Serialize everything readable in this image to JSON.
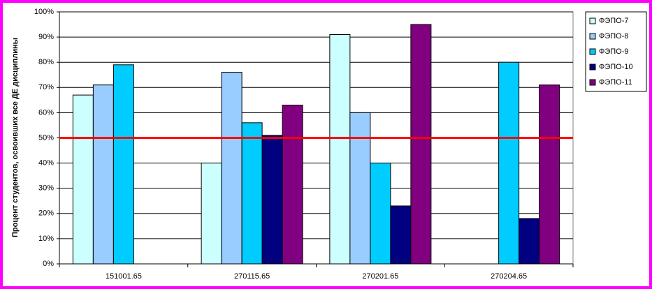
{
  "chart_data": {
    "type": "bar",
    "y_label": "Процент студентов, освоивших все ДЕ дисциплины",
    "categories": [
      "151001.65",
      "270115.65",
      "270201.65",
      "270204.65"
    ],
    "series": [
      {
        "name": "ФЭПО-7",
        "color": "#ccffff",
        "values": [
          67,
          40,
          91,
          null
        ]
      },
      {
        "name": "ФЭПО-8",
        "color": "#99ccff",
        "values": [
          71,
          76,
          60,
          null
        ]
      },
      {
        "name": "ФЭПО-9",
        "color": "#00ccff",
        "values": [
          79,
          56,
          40,
          80
        ]
      },
      {
        "name": "ФЭПО-10",
        "color": "#000080",
        "values": [
          null,
          51,
          23,
          18
        ]
      },
      {
        "name": "ФЭПО-11",
        "color": "#800080",
        "values": [
          null,
          63,
          95,
          71
        ]
      }
    ],
    "ylim": [
      0,
      100
    ],
    "yticks": [
      {
        "value": 0,
        "label": "0%"
      },
      {
        "value": 10,
        "label": "10%"
      },
      {
        "value": 20,
        "label": "20%"
      },
      {
        "value": 30,
        "label": "30%"
      },
      {
        "value": 40,
        "label": "40%"
      },
      {
        "value": 50,
        "label": "50%"
      },
      {
        "value": 60,
        "label": "60%"
      },
      {
        "value": 70,
        "label": "70%"
      },
      {
        "value": 80,
        "label": "80%"
      },
      {
        "value": 90,
        "label": "90%"
      },
      {
        "value": 100,
        "label": "100%"
      }
    ],
    "threshold": 50,
    "threshold_color": "#ff0000",
    "grid": true,
    "legend": "right"
  }
}
